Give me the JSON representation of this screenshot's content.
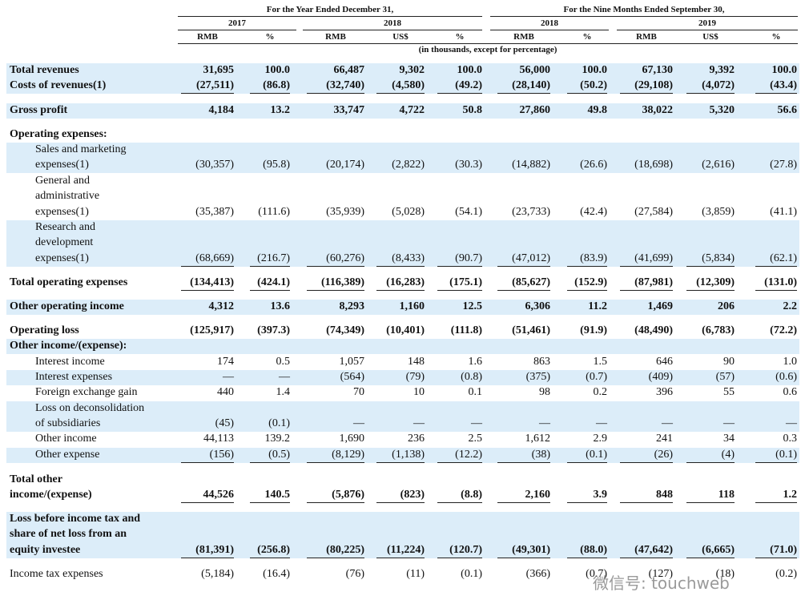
{
  "header": {
    "groups": [
      "For the Year Ended December 31,",
      "For the Nine Months Ended September 30,"
    ],
    "years": [
      "2017",
      "2018",
      "2018",
      "2019"
    ],
    "units": [
      "RMB",
      "%",
      "RMB",
      "US$",
      "%",
      "RMB",
      "%",
      "RMB",
      "US$",
      "%"
    ],
    "note": "(in thousands, except for percentage)"
  },
  "table": {
    "rows": [
      {
        "label": [
          "Total revenues"
        ],
        "values": [
          "31,695",
          "100.0",
          "66,487",
          "9,302",
          "100.0",
          "56,000",
          "100.0",
          "67,130",
          "9,392",
          "100.0"
        ]
      },
      {
        "label": [
          "Costs of revenues(1)"
        ],
        "values": [
          "(27,511)",
          "(86.8)",
          "(32,740)",
          "(4,580)",
          "(49.2)",
          "(28,140)",
          "(50.2)",
          "(29,108)",
          "(4,072)",
          "(43.4)"
        ]
      },
      {
        "label": [
          "Gross profit"
        ],
        "values": [
          "4,184",
          "13.2",
          "33,747",
          "4,722",
          "50.8",
          "27,860",
          "49.8",
          "38,022",
          "5,320",
          "56.6"
        ]
      },
      {
        "label": [
          "Operating expenses:"
        ],
        "values": []
      },
      {
        "label": [
          "Sales and marketing",
          "expenses(1)"
        ],
        "values": [
          "(30,357)",
          "(95.8)",
          "(20,174)",
          "(2,822)",
          "(30.3)",
          "(14,882)",
          "(26.6)",
          "(18,698)",
          "(2,616)",
          "(27.8)"
        ]
      },
      {
        "label": [
          "General and",
          "administrative",
          "expenses(1)"
        ],
        "values": [
          "(35,387)",
          "(111.6)",
          "(35,939)",
          "(5,028)",
          "(54.1)",
          "(23,733)",
          "(42.4)",
          "(27,584)",
          "(3,859)",
          "(41.1)"
        ]
      },
      {
        "label": [
          "Research and",
          "development",
          "expenses(1)"
        ],
        "values": [
          "(68,669)",
          "(216.7)",
          "(60,276)",
          "(8,433)",
          "(90.7)",
          "(47,012)",
          "(83.9)",
          "(41,699)",
          "(5,834)",
          "(62.1)"
        ]
      },
      {
        "label": [
          "Total operating expenses"
        ],
        "values": [
          "(134,413)",
          "(424.1)",
          "(116,389)",
          "(16,283)",
          "(175.1)",
          "(85,627)",
          "(152.9)",
          "(87,981)",
          "(12,309)",
          "(131.0)"
        ]
      },
      {
        "label": [
          "Other operating income"
        ],
        "values": [
          "4,312",
          "13.6",
          "8,293",
          "1,160",
          "12.5",
          "6,306",
          "11.2",
          "1,469",
          "206",
          "2.2"
        ]
      },
      {
        "label": [
          "Operating loss"
        ],
        "values": [
          "(125,917)",
          "(397.3)",
          "(74,349)",
          "(10,401)",
          "(111.8)",
          "(51,461)",
          "(91.9)",
          "(48,490)",
          "(6,783)",
          "(72.2)"
        ]
      },
      {
        "label": [
          "Other income/(expense):"
        ],
        "values": []
      },
      {
        "label": [
          "Interest income"
        ],
        "values": [
          "174",
          "0.5",
          "1,057",
          "148",
          "1.6",
          "863",
          "1.5",
          "646",
          "90",
          "1.0"
        ]
      },
      {
        "label": [
          "Interest expenses"
        ],
        "values": [
          "—",
          "—",
          "(564)",
          "(79)",
          "(0.8)",
          "(375)",
          "(0.7)",
          "(409)",
          "(57)",
          "(0.6)"
        ]
      },
      {
        "label": [
          "Foreign exchange gain"
        ],
        "values": [
          "440",
          "1.4",
          "70",
          "10",
          "0.1",
          "98",
          "0.2",
          "396",
          "55",
          "0.6"
        ]
      },
      {
        "label": [
          "Loss on deconsolidation",
          "of subsidiaries"
        ],
        "values": [
          "(45)",
          "(0.1)",
          "—",
          "—",
          "—",
          "—",
          "—",
          "—",
          "—",
          "—"
        ]
      },
      {
        "label": [
          "Other income"
        ],
        "values": [
          "44,113",
          "139.2",
          "1,690",
          "236",
          "2.5",
          "1,612",
          "2.9",
          "241",
          "34",
          "0.3"
        ]
      },
      {
        "label": [
          "Other expense"
        ],
        "values": [
          "(156)",
          "(0.5)",
          "(8,129)",
          "(1,138)",
          "(12.2)",
          "(38)",
          "(0.1)",
          "(26)",
          "(4)",
          "(0.1)"
        ]
      },
      {
        "label": [
          "Total other",
          "income/(expense)"
        ],
        "values": [
          "44,526",
          "140.5",
          "(5,876)",
          "(823)",
          "(8.8)",
          "2,160",
          "3.9",
          "848",
          "118",
          "1.2"
        ]
      },
      {
        "label": [
          "Loss before income tax and",
          "share of net loss from an",
          "equity investee"
        ],
        "values": [
          "(81,391)",
          "(256.8)",
          "(80,225)",
          "(11,224)",
          "(120.7)",
          "(49,301)",
          "(88.0)",
          "(47,642)",
          "(6,665)",
          "(71.0)"
        ]
      },
      {
        "label": [
          "Income tax expenses"
        ],
        "values": [
          "(5,184)",
          "(16.4)",
          "(76)",
          "(11)",
          "(0.1)",
          "(366)",
          "(0.7)",
          "(127)",
          "(18)",
          "(0.2)"
        ]
      }
    ]
  },
  "watermark": "微信号: touchweb"
}
